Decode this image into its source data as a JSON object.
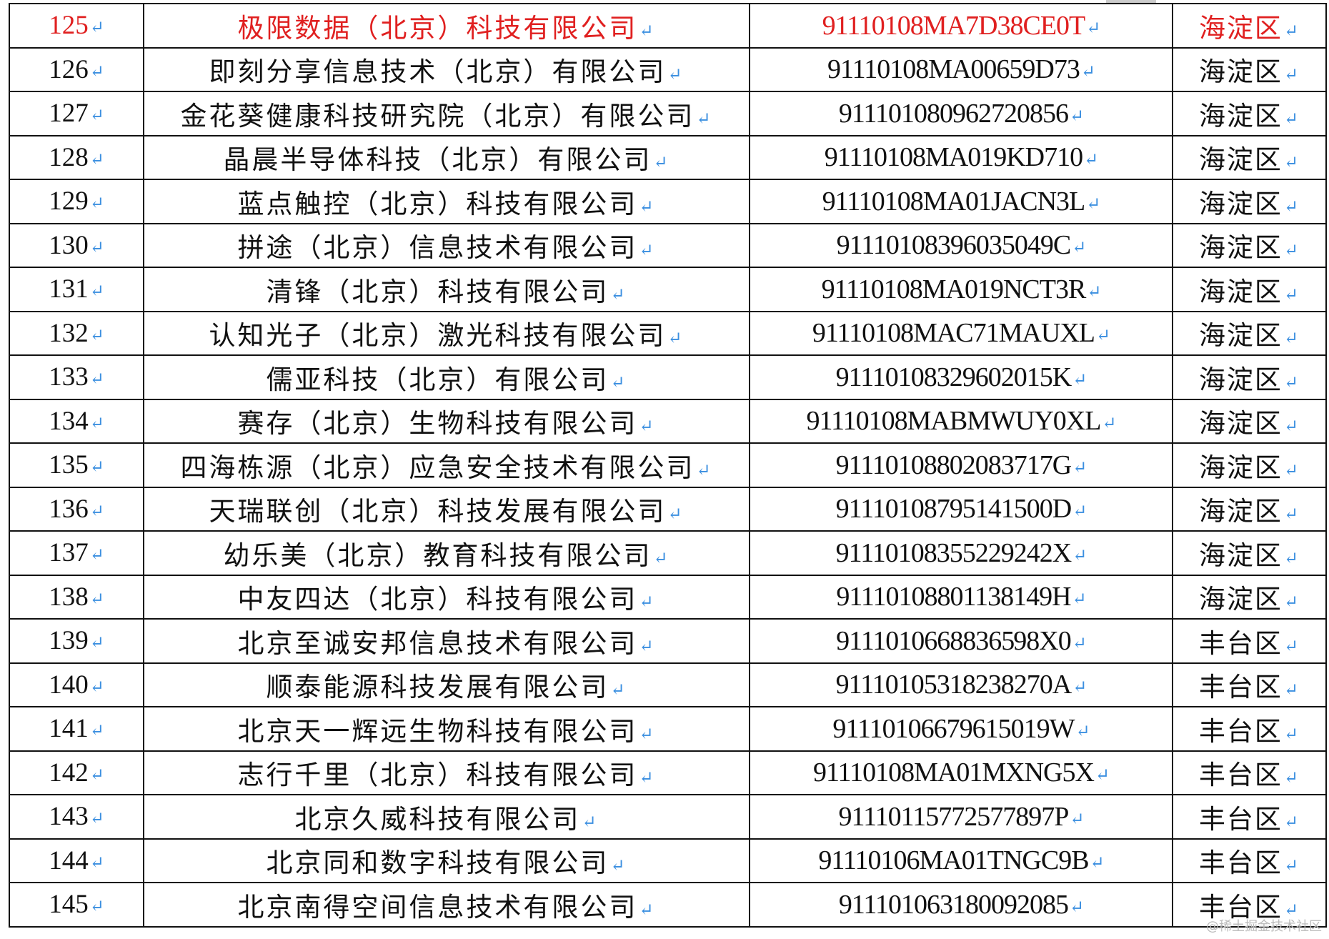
{
  "return_mark": "↵",
  "highlight_color": "#e02020",
  "rows": [
    {
      "no": "125",
      "name": "极限数据（北京）科技有限公司",
      "code": "91110108MA7D38CE0T",
      "district": "海淀区",
      "highlighted": true
    },
    {
      "no": "126",
      "name": "即刻分享信息技术（北京）有限公司",
      "code": "91110108MA00659D73",
      "district": "海淀区"
    },
    {
      "no": "127",
      "name": "金花葵健康科技研究院（北京）有限公司",
      "code": "911101080962720856",
      "district": "海淀区"
    },
    {
      "no": "128",
      "name": "晶晨半导体科技（北京）有限公司",
      "code": "91110108MA019KD710",
      "district": "海淀区"
    },
    {
      "no": "129",
      "name": "蓝点触控（北京）科技有限公司",
      "code": "91110108MA01JACN3L",
      "district": "海淀区"
    },
    {
      "no": "130",
      "name": "拼途（北京）信息技术有限公司",
      "code": "91110108396035049C",
      "district": "海淀区"
    },
    {
      "no": "131",
      "name": "清锋（北京）科技有限公司",
      "code": "91110108MA019NCT3R",
      "district": "海淀区"
    },
    {
      "no": "132",
      "name": "认知光子（北京）激光科技有限公司",
      "code": "91110108MAC71MAUXL",
      "district": "海淀区"
    },
    {
      "no": "133",
      "name": "儒亚科技（北京）有限公司",
      "code": "91110108329602015K",
      "district": "海淀区"
    },
    {
      "no": "134",
      "name": "赛存（北京）生物科技有限公司",
      "code": "91110108MABMWUY0XL",
      "district": "海淀区"
    },
    {
      "no": "135",
      "name": "四海栋源（北京）应急安全技术有限公司",
      "code": "91110108802083717G",
      "district": "海淀区"
    },
    {
      "no": "136",
      "name": "天瑞联创（北京）科技发展有限公司",
      "code": "91110108795141500D",
      "district": "海淀区"
    },
    {
      "no": "137",
      "name": "幼乐美（北京）教育科技有限公司",
      "code": "91110108355229242X",
      "district": "海淀区"
    },
    {
      "no": "138",
      "name": "中友四达（北京）科技有限公司",
      "code": "91110108801138149H",
      "district": "海淀区"
    },
    {
      "no": "139",
      "name": "北京至诚安邦信息技术有限公司",
      "code": "91110106688365 98X0",
      "district": "丰台区"
    },
    {
      "no": "140",
      "name": "顺泰能源科技发展有限公司",
      "code": "91110105318238270A",
      "district": "丰台区"
    },
    {
      "no": "141",
      "name": "北京天一辉远生物科技有限公司",
      "code": "91110106679615019W",
      "district": "丰台区"
    },
    {
      "no": "142",
      "name": "志行千里（北京）科技有限公司",
      "code": "91110108MA01MXNG5X",
      "district": "丰台区"
    },
    {
      "no": "143",
      "name": "北京久威科技有限公司",
      "code": "91110115772577897P",
      "district": "丰台区"
    },
    {
      "no": "144",
      "name": "北京同和数字科技有限公司",
      "code": "91110106MA01TNGC9B",
      "district": "丰台区"
    },
    {
      "no": "145",
      "name": "北京南得空间信息技术有限公司",
      "code": "911101063180092085",
      "district": "丰台区"
    }
  ],
  "watermark": "@稀土掘金技术社区"
}
